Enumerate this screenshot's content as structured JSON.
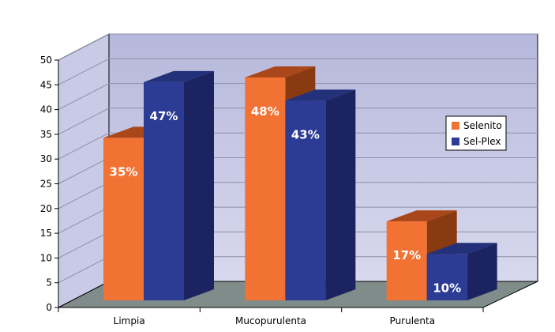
{
  "chart_data": {
    "type": "bar",
    "categories": [
      "Limpia",
      "Mucopurulenta",
      "Purulenta"
    ],
    "series": [
      {
        "name": "Selenito",
        "values": [
          35,
          48,
          17
        ],
        "labels": [
          "35%",
          "48%",
          "17%"
        ],
        "color": "#F27233"
      },
      {
        "name": "Sel-Plex",
        "values": [
          47,
          43,
          10
        ],
        "labels": [
          "47%",
          "43%",
          "10%"
        ],
        "color": "#2C3C95"
      }
    ],
    "yticks": [
      0,
      5,
      10,
      15,
      20,
      25,
      30,
      35,
      40,
      45,
      50
    ],
    "ylim": [
      0,
      50
    ],
    "grid": true,
    "legend_position": "right",
    "title": "",
    "xlabel": "",
    "ylabel": "",
    "colors": {
      "wall": "#BFC0E0",
      "floor": "#7F8C8A",
      "grid": "#8F90A8"
    }
  }
}
